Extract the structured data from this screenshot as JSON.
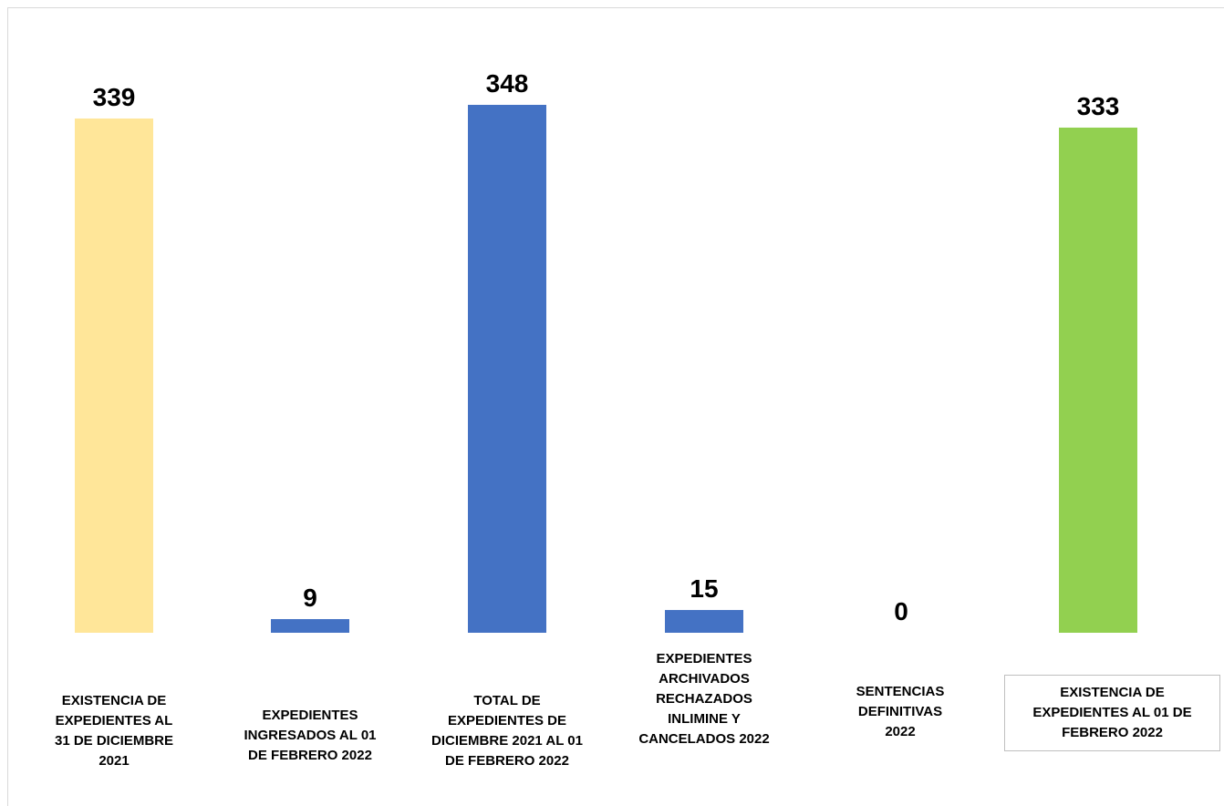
{
  "chart_data": {
    "type": "bar",
    "title": "",
    "xlabel": "",
    "ylabel": "",
    "categories": [
      "EXISTENCIA DE EXPEDIENTES AL 31 DE DICIEMBRE 2021",
      "EXPEDIENTES INGRESADOS AL 01 DE FEBRERO 2022",
      "TOTAL DE EXPEDIENTES DE DICIEMBRE 2021 AL 01 DE FEBRERO 2022",
      "EXPEDIENTES ARCHIVADOS RECHAZADOS INLIMINE Y CANCELADOS 2022",
      "SENTENCIAS DEFINITIVAS 2022",
      "EXISTENCIA DE EXPEDIENTES AL 01 DE FEBRERO 2022"
    ],
    "values": [
      339,
      9,
      348,
      15,
      0,
      333
    ],
    "bar_colors": [
      "#FFE699",
      "#4472C4",
      "#4472C4",
      "#4472C4",
      "#4472C4",
      "#92D050"
    ],
    "data_labels": [
      "339",
      "9",
      "348",
      "15",
      "0",
      "333"
    ],
    "ylim": [
      0,
      348
    ],
    "grid": false,
    "legend": "none"
  }
}
